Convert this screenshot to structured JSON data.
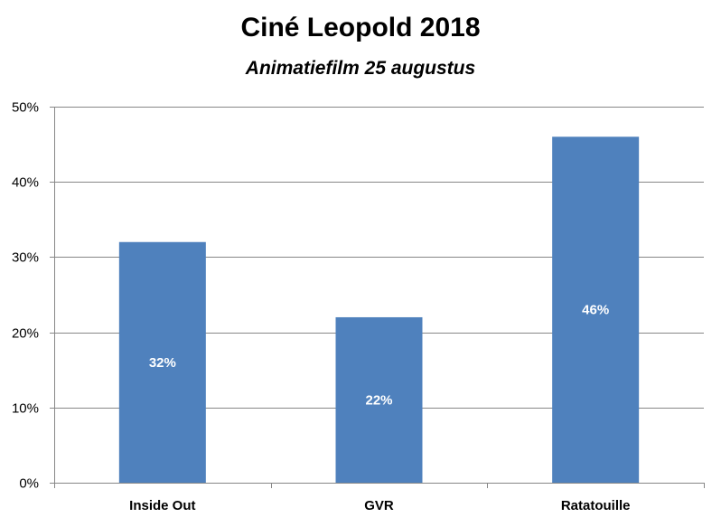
{
  "chart_data": {
    "type": "bar",
    "title": "Ciné Leopold 2018",
    "subtitle": "Animatiefilm 25 augustus",
    "categories": [
      "Inside Out",
      "GVR",
      "Ratatouille"
    ],
    "values": [
      32,
      22,
      46
    ],
    "data_labels": [
      "32%",
      "22%",
      "46%"
    ],
    "xlabel": "",
    "ylabel": "",
    "ylim": [
      0,
      50
    ],
    "y_ticks": [
      0,
      10,
      20,
      30,
      40,
      50
    ],
    "y_tick_labels": [
      "0%",
      "10%",
      "20%",
      "30%",
      "40%",
      "50%"
    ],
    "grid": true,
    "legend": "none",
    "bar_color": "#4F81BD",
    "grid_color": "#878787"
  }
}
